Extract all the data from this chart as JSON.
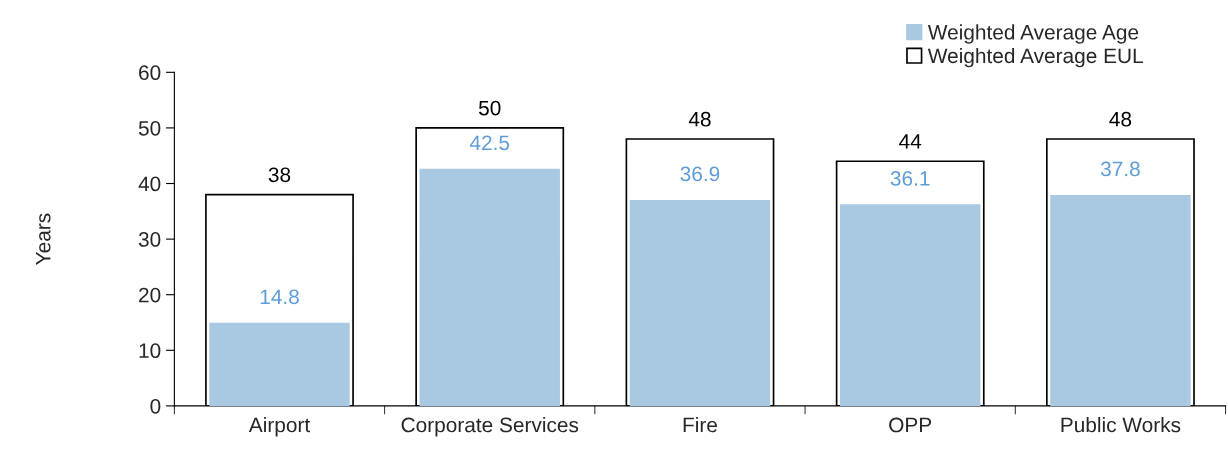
{
  "chart_data": {
    "type": "bar",
    "ylabel": "Years",
    "categories": [
      "Airport",
      "Corporate Services",
      "Fire",
      "OPP",
      "Public Works"
    ],
    "series": [
      {
        "name": "Weighted Average Age",
        "color": "#a9c8e2",
        "values": [
          14.8,
          42.5,
          36.9,
          36.1,
          37.8
        ]
      },
      {
        "name": "Weighted Average EUL",
        "color": "#ffffff",
        "values": [
          38,
          50,
          48,
          44,
          48
        ]
      }
    ],
    "ylim": [
      0,
      60
    ],
    "yticks": [
      0,
      10,
      20,
      30,
      40,
      50,
      60
    ],
    "grid": false,
    "legend": "top right",
    "data_labels": true
  }
}
